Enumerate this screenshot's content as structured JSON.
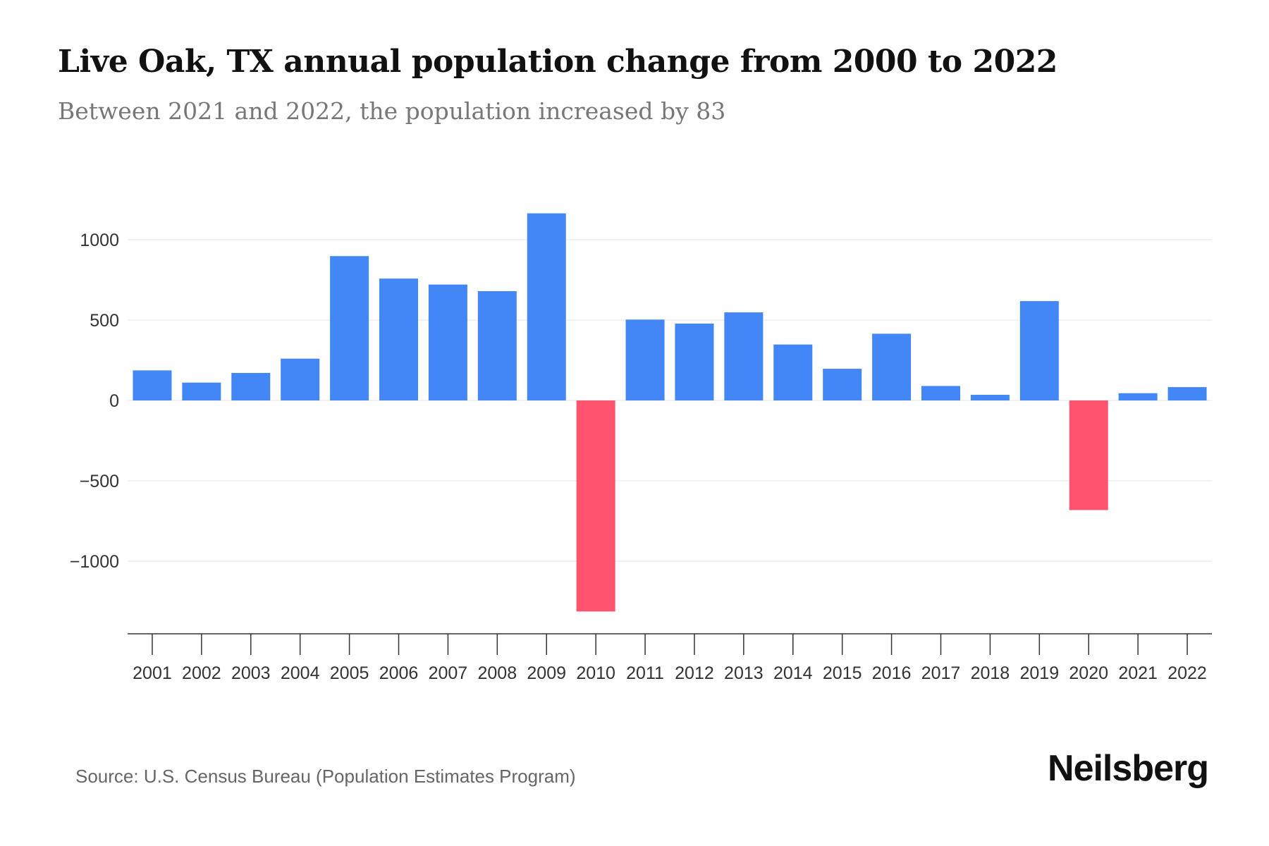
{
  "title": "Live Oak, TX annual population change from 2000 to 2022",
  "subtitle": "Between 2021 and 2022, the population increased by 83",
  "source": "Source: U.S. Census Bureau (Population Estimates Program)",
  "logo": "Neilsberg",
  "colors": {
    "positive": "#4287f5",
    "negative": "#ff536f",
    "grid": "#eeeeee",
    "axis": "#333333"
  },
  "chart_data": {
    "type": "bar",
    "title": "Live Oak, TX annual population change from 2000 to 2022",
    "xlabel": "",
    "ylabel": "",
    "ylim": [
      -1450,
      1200
    ],
    "yticks": [
      -1000,
      -500,
      0,
      500,
      1000
    ],
    "ytick_labels": [
      "−1000",
      "−500",
      "0",
      "500",
      "1000"
    ],
    "grid": true,
    "categories": [
      "2001",
      "2002",
      "2003",
      "2004",
      "2005",
      "2006",
      "2007",
      "2008",
      "2009",
      "2010",
      "2011",
      "2012",
      "2013",
      "2014",
      "2015",
      "2016",
      "2017",
      "2018",
      "2019",
      "2020",
      "2021",
      "2022"
    ],
    "values": [
      187,
      111,
      171,
      260,
      898,
      758,
      721,
      680,
      1164,
      -1313,
      503,
      478,
      548,
      348,
      197,
      415,
      90,
      35,
      618,
      -682,
      45,
      83
    ]
  }
}
